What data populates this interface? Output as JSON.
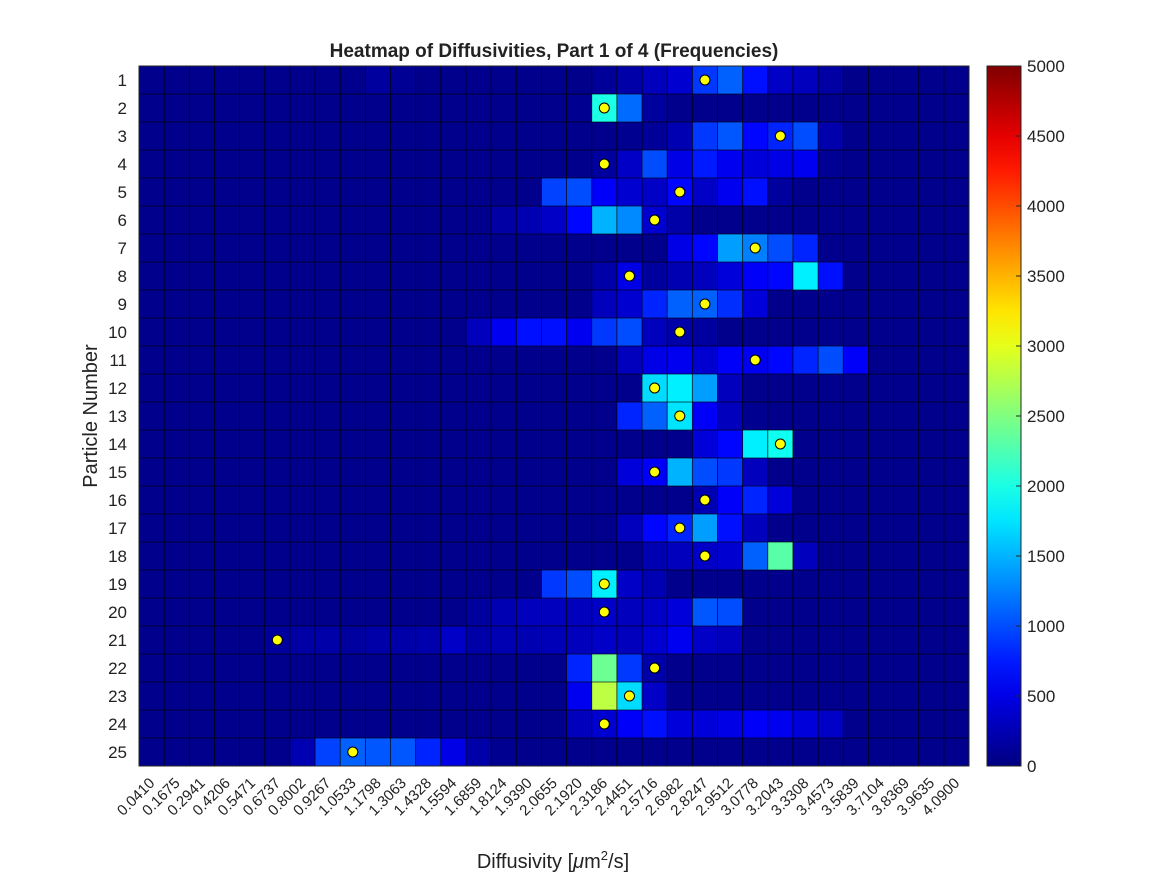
{
  "chart_data": {
    "type": "heatmap",
    "title": "Heatmap of Diffusivities, Part 1 of 4 (Frequencies)",
    "xlabel": "Diffusivity [μm²/s]",
    "xlabel_main": "Diffusivity [",
    "xlabel_mu": "μ",
    "xlabel_m": "m",
    "xlabel_sup": "2",
    "xlabel_tail": "/s]",
    "ylabel": "Particle Number",
    "x_tick_labels": [
      "0.0410",
      "0.1675",
      "0.2941",
      "0.4206",
      "0.5471",
      "0.6737",
      "0.8002",
      "0.9267",
      "1.0533",
      "1.1798",
      "1.3063",
      "1.4328",
      "1.5594",
      "1.6859",
      "1.8124",
      "1.9390",
      "2.0655",
      "2.1920",
      "2.3186",
      "2.4451",
      "2.5716",
      "2.6982",
      "2.8247",
      "2.9512",
      "3.0778",
      "3.2043",
      "3.3308",
      "3.4573",
      "3.5839",
      "3.7104",
      "3.8369",
      "3.9635",
      "4.0900"
    ],
    "y_tick_labels": [
      "1",
      "2",
      "3",
      "4",
      "5",
      "6",
      "7",
      "8",
      "9",
      "10",
      "11",
      "12",
      "13",
      "14",
      "15",
      "16",
      "17",
      "18",
      "19",
      "20",
      "21",
      "22",
      "23",
      "24",
      "25"
    ],
    "colorbar": {
      "min": 0,
      "max": 5000,
      "ticks": [
        "0",
        "500",
        "1000",
        "1500",
        "2000",
        "2500",
        "3000",
        "3500",
        "4000",
        "4500",
        "5000"
      ],
      "colormap": "jet"
    },
    "hot_cells": [
      [
        [
          9,
          150
        ],
        [
          10,
          100
        ],
        [
          17,
          50
        ],
        [
          18,
          120
        ],
        [
          19,
          200
        ],
        [
          20,
          300
        ],
        [
          21,
          400
        ],
        [
          22,
          900
        ],
        [
          23,
          1100
        ],
        [
          24,
          700
        ],
        [
          25,
          350
        ],
        [
          26,
          300
        ],
        [
          27,
          180
        ],
        [
          28,
          50
        ]
      ],
      [
        [
          17,
          80
        ],
        [
          18,
          2000
        ],
        [
          19,
          1150
        ],
        [
          20,
          150
        ],
        [
          21,
          60
        ]
      ],
      [
        [
          19,
          80
        ],
        [
          20,
          120
        ],
        [
          21,
          250
        ],
        [
          22,
          900
        ],
        [
          23,
          1050
        ],
        [
          24,
          650
        ],
        [
          25,
          800
        ],
        [
          26,
          1000
        ],
        [
          27,
          220
        ]
      ],
      [
        [
          18,
          150
        ],
        [
          19,
          350
        ],
        [
          20,
          1000
        ],
        [
          21,
          500
        ],
        [
          22,
          750
        ],
        [
          23,
          550
        ],
        [
          24,
          450
        ],
        [
          25,
          500
        ],
        [
          26,
          550
        ],
        [
          27,
          100
        ]
      ],
      [
        [
          16,
          950
        ],
        [
          17,
          1000
        ],
        [
          18,
          600
        ],
        [
          19,
          400
        ],
        [
          20,
          350
        ],
        [
          21,
          650
        ],
        [
          22,
          350
        ],
        [
          23,
          550
        ],
        [
          24,
          700
        ],
        [
          25,
          150
        ]
      ],
      [
        [
          14,
          180
        ],
        [
          15,
          250
        ],
        [
          16,
          350
        ],
        [
          17,
          650
        ],
        [
          18,
          1500
        ],
        [
          19,
          1300
        ],
        [
          20,
          400
        ],
        [
          21,
          200
        ]
      ],
      [
        [
          21,
          500
        ],
        [
          22,
          650
        ],
        [
          23,
          1400
        ],
        [
          24,
          1250
        ],
        [
          25,
          1000
        ],
        [
          26,
          800
        ]
      ],
      [
        [
          18,
          200
        ],
        [
          19,
          500
        ],
        [
          20,
          150
        ],
        [
          21,
          250
        ],
        [
          22,
          300
        ],
        [
          23,
          450
        ],
        [
          24,
          600
        ],
        [
          25,
          650
        ],
        [
          26,
          1800
        ],
        [
          27,
          700
        ]
      ],
      [
        [
          18,
          300
        ],
        [
          19,
          400
        ],
        [
          20,
          800
        ],
        [
          21,
          1100
        ],
        [
          22,
          1100
        ],
        [
          23,
          850
        ],
        [
          24,
          450
        ]
      ],
      [
        [
          13,
          300
        ],
        [
          14,
          550
        ],
        [
          15,
          700
        ],
        [
          16,
          700
        ],
        [
          17,
          550
        ],
        [
          18,
          900
        ],
        [
          19,
          1000
        ],
        [
          20,
          300
        ],
        [
          21,
          200
        ],
        [
          22,
          150
        ]
      ],
      [
        [
          19,
          300
        ],
        [
          20,
          500
        ],
        [
          21,
          550
        ],
        [
          22,
          400
        ],
        [
          23,
          600
        ],
        [
          24,
          550
        ],
        [
          25,
          650
        ],
        [
          26,
          800
        ],
        [
          27,
          1000
        ],
        [
          28,
          600
        ]
      ],
      [
        [
          20,
          1700
        ],
        [
          21,
          1800
        ],
        [
          22,
          1400
        ],
        [
          23,
          300
        ]
      ],
      [
        [
          19,
          800
        ],
        [
          20,
          1100
        ],
        [
          21,
          1750
        ],
        [
          22,
          600
        ],
        [
          23,
          300
        ],
        [
          24,
          80
        ]
      ],
      [
        [
          22,
          450
        ],
        [
          23,
          650
        ],
        [
          24,
          1800
        ],
        [
          25,
          1950
        ]
      ],
      [
        [
          19,
          450
        ],
        [
          20,
          600
        ],
        [
          21,
          1500
        ],
        [
          22,
          1000
        ],
        [
          23,
          900
        ],
        [
          24,
          300
        ]
      ],
      [
        [
          22,
          250
        ],
        [
          23,
          600
        ],
        [
          24,
          800
        ],
        [
          25,
          450
        ]
      ],
      [
        [
          19,
          300
        ],
        [
          20,
          650
        ],
        [
          21,
          800
        ],
        [
          22,
          1400
        ],
        [
          23,
          700
        ],
        [
          24,
          300
        ]
      ],
      [
        [
          20,
          250
        ],
        [
          21,
          300
        ],
        [
          22,
          350
        ],
        [
          23,
          400
        ],
        [
          24,
          1100
        ],
        [
          25,
          2300
        ],
        [
          26,
          300
        ]
      ],
      [
        [
          16,
          900
        ],
        [
          17,
          1000
        ],
        [
          18,
          1800
        ],
        [
          19,
          350
        ],
        [
          20,
          250
        ]
      ],
      [
        [
          13,
          150
        ],
        [
          14,
          250
        ],
        [
          15,
          300
        ],
        [
          16,
          300
        ],
        [
          17,
          300
        ],
        [
          18,
          350
        ],
        [
          19,
          300
        ],
        [
          20,
          350
        ],
        [
          21,
          450
        ],
        [
          22,
          1050
        ],
        [
          23,
          1000
        ]
      ],
      [
        [
          5,
          150
        ],
        [
          6,
          180
        ],
        [
          7,
          200
        ],
        [
          8,
          150
        ],
        [
          9,
          200
        ],
        [
          10,
          200
        ],
        [
          11,
          220
        ],
        [
          12,
          350
        ],
        [
          13,
          200
        ],
        [
          14,
          250
        ],
        [
          15,
          250
        ],
        [
          16,
          280
        ],
        [
          17,
          300
        ],
        [
          18,
          350
        ],
        [
          19,
          300
        ],
        [
          20,
          400
        ],
        [
          21,
          550
        ],
        [
          22,
          350
        ],
        [
          23,
          300
        ]
      ],
      [
        [
          17,
          800
        ],
        [
          18,
          2400
        ],
        [
          19,
          900
        ],
        [
          20,
          200
        ]
      ],
      [
        [
          17,
          550
        ],
        [
          18,
          2800
        ],
        [
          19,
          1700
        ],
        [
          20,
          350
        ]
      ],
      [
        [
          17,
          300
        ],
        [
          18,
          400
        ],
        [
          19,
          600
        ],
        [
          20,
          700
        ],
        [
          21,
          450
        ],
        [
          22,
          450
        ],
        [
          23,
          500
        ],
        [
          24,
          600
        ],
        [
          25,
          550
        ],
        [
          26,
          450
        ],
        [
          27,
          350
        ]
      ],
      [
        [
          6,
          250
        ],
        [
          7,
          950
        ],
        [
          8,
          1100
        ],
        [
          9,
          1050
        ],
        [
          10,
          1050
        ],
        [
          11,
          800
        ],
        [
          12,
          500
        ],
        [
          13,
          200
        ],
        [
          14,
          80
        ]
      ]
    ],
    "means": [
      22.5,
      18.5,
      25.5,
      18.5,
      21.5,
      20.5,
      24.5,
      19.5,
      22.5,
      21.5,
      24.5,
      20.5,
      21.5,
      25.5,
      20.5,
      22.5,
      21.5,
      22.5,
      18.5,
      18.5,
      5.5,
      20.5,
      19.5,
      18.5,
      8.5
    ],
    "marker_color": "#ffff00",
    "background_value": 60
  }
}
